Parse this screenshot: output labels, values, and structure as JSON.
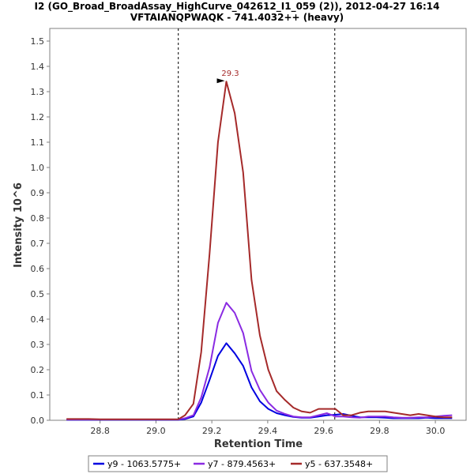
{
  "chart_data": {
    "type": "line",
    "title": "I2 (GO_Broad_BroadAssay_HighCurve_042612_I1_059 (2)), 2012-04-27 16:14",
    "subtitle": "VFTAIANQPWAQK - 741.4032++ (heavy)",
    "xlabel": "Retention Time",
    "ylabel": "Intensity 10^6",
    "xlim": [
      28.62,
      30.11
    ],
    "ylim": [
      0,
      1.55
    ],
    "xticks": [
      28.8,
      29.0,
      29.2,
      29.4,
      29.6,
      29.8,
      30.0
    ],
    "xtick_labels": [
      "28.8",
      "29.0",
      "29.2",
      "29.4",
      "29.6",
      "29.8",
      "30.0"
    ],
    "yticks": [
      0.0,
      0.1,
      0.2,
      0.3,
      0.4,
      0.5,
      0.6,
      0.7,
      0.8,
      0.9,
      1.0,
      1.1,
      1.2,
      1.3,
      1.4,
      1.5
    ],
    "ytick_labels": [
      "0.0",
      "0.1",
      "0.2",
      "0.3",
      "0.4",
      "0.5",
      "0.6",
      "0.7",
      "0.8",
      "0.9",
      "1.0",
      "1.1",
      "1.2",
      "1.3",
      "1.4",
      "1.5"
    ],
    "vlines": [
      29.08,
      29.64
    ],
    "peak_annotation": {
      "label": "29.3",
      "x": 29.252,
      "y": 1.34
    },
    "x": [
      28.68,
      28.72,
      28.76,
      28.8,
      28.84,
      28.88,
      28.92,
      28.96,
      29.0,
      29.04,
      29.08,
      29.104,
      29.134,
      29.162,
      29.192,
      29.222,
      29.252,
      29.282,
      29.312,
      29.342,
      29.372,
      29.402,
      29.432,
      29.462,
      29.492,
      29.522,
      29.552,
      29.582,
      29.612,
      29.642,
      29.67,
      29.7,
      29.73,
      29.76,
      29.79,
      29.82,
      29.85,
      29.88,
      29.91,
      29.94,
      29.97,
      30.0,
      30.03,
      30.06
    ],
    "series": [
      {
        "name": "y9 - 1063.5775+",
        "legend_label": "y9 - 1063.5775+",
        "color": "#0000e0",
        "values": [
          0.002,
          0.002,
          0.002,
          0.002,
          0.002,
          0.002,
          0.002,
          0.002,
          0.002,
          0.002,
          0.002,
          0.005,
          0.015,
          0.07,
          0.16,
          0.255,
          0.305,
          0.265,
          0.215,
          0.13,
          0.075,
          0.045,
          0.028,
          0.02,
          0.013,
          0.01,
          0.01,
          0.015,
          0.02,
          0.022,
          0.025,
          0.018,
          0.012,
          0.012,
          0.012,
          0.01,
          0.008,
          0.008,
          0.008,
          0.008,
          0.01,
          0.008,
          0.008,
          0.008
        ]
      },
      {
        "name": "y7 - 879.4563+",
        "legend_label": "y7 - 879.4563+",
        "color": "#8a2be2",
        "values": [
          0.003,
          0.003,
          0.003,
          0.003,
          0.003,
          0.003,
          0.003,
          0.003,
          0.003,
          0.003,
          0.003,
          0.008,
          0.02,
          0.09,
          0.21,
          0.385,
          0.465,
          0.425,
          0.345,
          0.195,
          0.12,
          0.07,
          0.038,
          0.025,
          0.015,
          0.012,
          0.012,
          0.02,
          0.028,
          0.015,
          0.015,
          0.012,
          0.01,
          0.015,
          0.015,
          0.015,
          0.012,
          0.01,
          0.01,
          0.012,
          0.012,
          0.015,
          0.018,
          0.02
        ]
      },
      {
        "name": "y5 - 637.3548+",
        "legend_label": "y5 - 637.3548+",
        "color": "#a52a2a",
        "values": [
          0.005,
          0.005,
          0.005,
          0.004,
          0.004,
          0.004,
          0.004,
          0.004,
          0.004,
          0.004,
          0.004,
          0.02,
          0.065,
          0.27,
          0.66,
          1.1,
          1.34,
          1.215,
          0.98,
          0.555,
          0.335,
          0.2,
          0.115,
          0.08,
          0.05,
          0.035,
          0.03,
          0.045,
          0.045,
          0.045,
          0.02,
          0.02,
          0.03,
          0.035,
          0.035,
          0.035,
          0.03,
          0.025,
          0.02,
          0.025,
          0.02,
          0.015,
          0.012,
          0.012
        ]
      }
    ]
  }
}
